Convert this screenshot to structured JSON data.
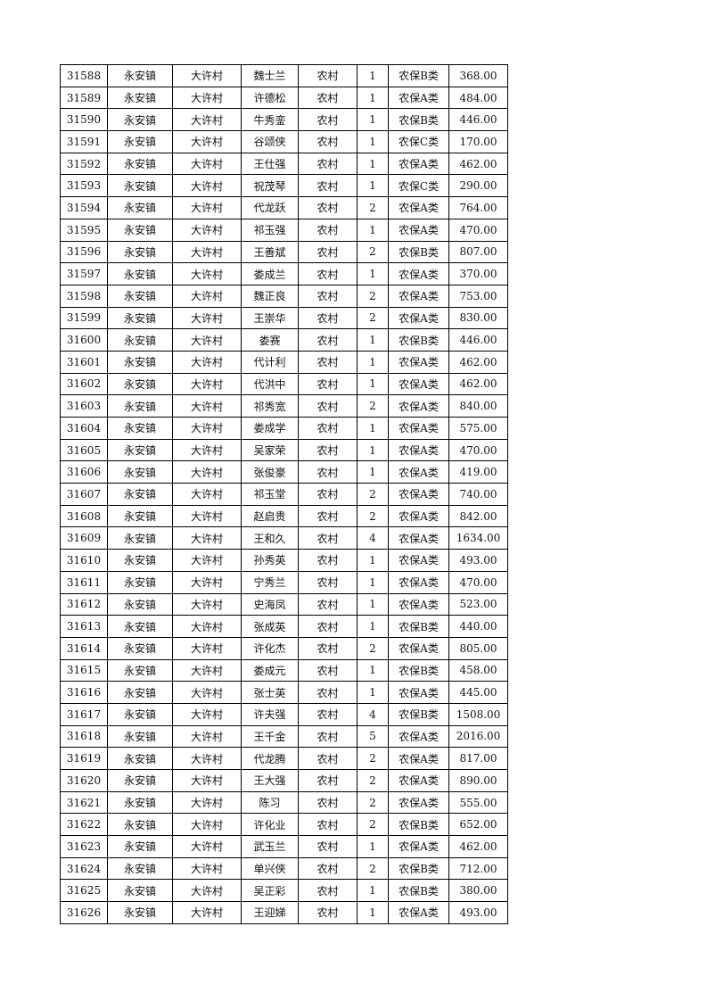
{
  "table": {
    "rows": [
      [
        "31588",
        "永安镇",
        "大许村",
        "魏士兰",
        "农村",
        "1",
        "农保B类",
        "368.00"
      ],
      [
        "31589",
        "永安镇",
        "大许村",
        "许德松",
        "农村",
        "1",
        "农保A类",
        "484.00"
      ],
      [
        "31590",
        "永安镇",
        "大许村",
        "牛秀銮",
        "农村",
        "1",
        "农保B类",
        "446.00"
      ],
      [
        "31591",
        "永安镇",
        "大许村",
        "谷颂侠",
        "农村",
        "1",
        "农保C类",
        "170.00"
      ],
      [
        "31592",
        "永安镇",
        "大许村",
        "王仕强",
        "农村",
        "1",
        "农保A类",
        "462.00"
      ],
      [
        "31593",
        "永安镇",
        "大许村",
        "祝茂琴",
        "农村",
        "1",
        "农保C类",
        "290.00"
      ],
      [
        "31594",
        "永安镇",
        "大许村",
        "代龙跃",
        "农村",
        "2",
        "农保A类",
        "764.00"
      ],
      [
        "31595",
        "永安镇",
        "大许村",
        "祁玉强",
        "农村",
        "1",
        "农保A类",
        "470.00"
      ],
      [
        "31596",
        "永安镇",
        "大许村",
        "王善斌",
        "农村",
        "2",
        "农保B类",
        "807.00"
      ],
      [
        "31597",
        "永安镇",
        "大许村",
        "娄成兰",
        "农村",
        "1",
        "农保A类",
        "370.00"
      ],
      [
        "31598",
        "永安镇",
        "大许村",
        "魏正良",
        "农村",
        "2",
        "农保A类",
        "753.00"
      ],
      [
        "31599",
        "永安镇",
        "大许村",
        "王崇华",
        "农村",
        "2",
        "农保A类",
        "830.00"
      ],
      [
        "31600",
        "永安镇",
        "大许村",
        "娄赛",
        "农村",
        "1",
        "农保B类",
        "446.00"
      ],
      [
        "31601",
        "永安镇",
        "大许村",
        "代计利",
        "农村",
        "1",
        "农保A类",
        "462.00"
      ],
      [
        "31602",
        "永安镇",
        "大许村",
        "代洪中",
        "农村",
        "1",
        "农保A类",
        "462.00"
      ],
      [
        "31603",
        "永安镇",
        "大许村",
        "祁秀宽",
        "农村",
        "2",
        "农保A类",
        "840.00"
      ],
      [
        "31604",
        "永安镇",
        "大许村",
        "娄成学",
        "农村",
        "1",
        "农保A类",
        "575.00"
      ],
      [
        "31605",
        "永安镇",
        "大许村",
        "吴家荣",
        "农村",
        "1",
        "农保A类",
        "470.00"
      ],
      [
        "31606",
        "永安镇",
        "大许村",
        "张俊豪",
        "农村",
        "1",
        "农保A类",
        "419.00"
      ],
      [
        "31607",
        "永安镇",
        "大许村",
        "祁玉堂",
        "农村",
        "2",
        "农保A类",
        "740.00"
      ],
      [
        "31608",
        "永安镇",
        "大许村",
        "赵启贵",
        "农村",
        "2",
        "农保A类",
        "842.00"
      ],
      [
        "31609",
        "永安镇",
        "大许村",
        "王和久",
        "农村",
        "4",
        "农保A类",
        "1634.00"
      ],
      [
        "31610",
        "永安镇",
        "大许村",
        "孙秀英",
        "农村",
        "1",
        "农保A类",
        "493.00"
      ],
      [
        "31611",
        "永安镇",
        "大许村",
        "宁秀兰",
        "农村",
        "1",
        "农保A类",
        "470.00"
      ],
      [
        "31612",
        "永安镇",
        "大许村",
        "史海凤",
        "农村",
        "1",
        "农保A类",
        "523.00"
      ],
      [
        "31613",
        "永安镇",
        "大许村",
        "张成英",
        "农村",
        "1",
        "农保B类",
        "440.00"
      ],
      [
        "31614",
        "永安镇",
        "大许村",
        "许化杰",
        "农村",
        "2",
        "农保A类",
        "805.00"
      ],
      [
        "31615",
        "永安镇",
        "大许村",
        "娄成元",
        "农村",
        "1",
        "农保B类",
        "458.00"
      ],
      [
        "31616",
        "永安镇",
        "大许村",
        "张士英",
        "农村",
        "1",
        "农保A类",
        "445.00"
      ],
      [
        "31617",
        "永安镇",
        "大许村",
        "许夫强",
        "农村",
        "4",
        "农保B类",
        "1508.00"
      ],
      [
        "31618",
        "永安镇",
        "大许村",
        "王千金",
        "农村",
        "5",
        "农保A类",
        "2016.00"
      ],
      [
        "31619",
        "永安镇",
        "大许村",
        "代龙腾",
        "农村",
        "2",
        "农保A类",
        "817.00"
      ],
      [
        "31620",
        "永安镇",
        "大许村",
        "王大强",
        "农村",
        "2",
        "农保A类",
        "890.00"
      ],
      [
        "31621",
        "永安镇",
        "大许村",
        "陈习",
        "农村",
        "2",
        "农保A类",
        "555.00"
      ],
      [
        "31622",
        "永安镇",
        "大许村",
        "许化业",
        "农村",
        "2",
        "农保B类",
        "652.00"
      ],
      [
        "31623",
        "永安镇",
        "大许村",
        "武玉兰",
        "农村",
        "1",
        "农保A类",
        "462.00"
      ],
      [
        "31624",
        "永安镇",
        "大许村",
        "单兴侠",
        "农村",
        "2",
        "农保B类",
        "712.00"
      ],
      [
        "31625",
        "永安镇",
        "大许村",
        "吴正彩",
        "农村",
        "1",
        "农保B类",
        "380.00"
      ],
      [
        "31626",
        "永安镇",
        "大许村",
        "王迎娣",
        "农村",
        "1",
        "农保A类",
        "493.00"
      ]
    ]
  }
}
